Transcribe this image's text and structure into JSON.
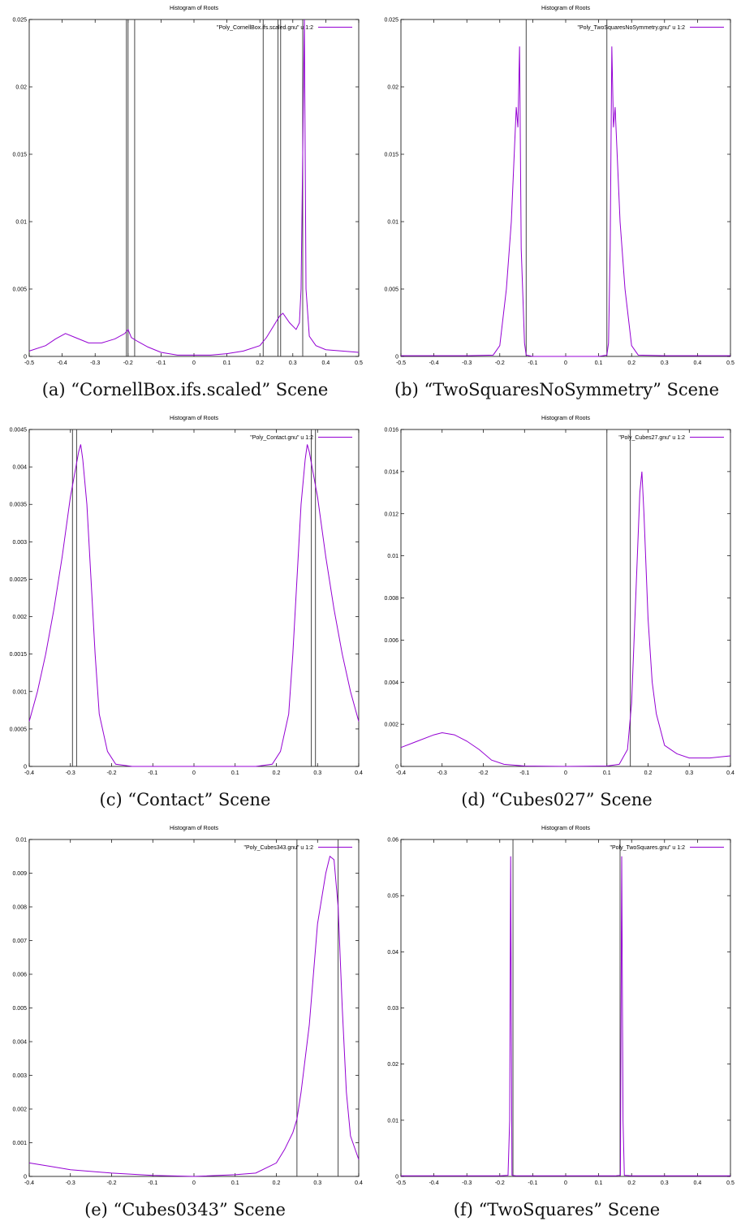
{
  "chart_data": [
    {
      "type": "line",
      "title": "Histogram of Roots",
      "caption": "(a) “CornellBox.ifs.scaled” Scene",
      "legend": "\"Poly_CornellBox.ifs.scaled.gnu\" u 1:2",
      "legend_position": "top-right",
      "xlim": [
        -0.5,
        0.5
      ],
      "ylim": [
        0,
        0.025
      ],
      "xticks": [
        "-0.5",
        "-0.4",
        "-0.3",
        "-0.2",
        "-0.1",
        "0",
        "0.1",
        "0.2",
        "0.3",
        "0.4",
        "0.5"
      ],
      "yticks": [
        "0",
        "0.005",
        "0.01",
        "0.015",
        "0.02",
        "0.025"
      ],
      "vlines": [
        -0.205,
        -0.2,
        -0.18,
        0.21,
        0.255,
        0.263,
        0.33
      ],
      "series": [
        {
          "color": "#9400d3",
          "points": [
            [
              -0.5,
              0.0004
            ],
            [
              -0.45,
              0.0008
            ],
            [
              -0.42,
              0.0013
            ],
            [
              -0.39,
              0.0017
            ],
            [
              -0.36,
              0.0014
            ],
            [
              -0.32,
              0.001
            ],
            [
              -0.28,
              0.001
            ],
            [
              -0.24,
              0.0013
            ],
            [
              -0.21,
              0.0017
            ],
            [
              -0.2,
              0.002
            ],
            [
              -0.19,
              0.0014
            ],
            [
              -0.17,
              0.0011
            ],
            [
              -0.14,
              0.0007
            ],
            [
              -0.1,
              0.0003
            ],
            [
              -0.05,
              0.0001
            ],
            [
              0,
              0.0001
            ],
            [
              0.05,
              0.0001
            ],
            [
              0.1,
              0.0002
            ],
            [
              0.15,
              0.0004
            ],
            [
              0.2,
              0.0008
            ],
            [
              0.22,
              0.0014
            ],
            [
              0.24,
              0.0022
            ],
            [
              0.26,
              0.003
            ],
            [
              0.27,
              0.0032
            ],
            [
              0.29,
              0.0025
            ],
            [
              0.31,
              0.002
            ],
            [
              0.32,
              0.0025
            ],
            [
              0.325,
              0.005
            ],
            [
              0.33,
              0.015
            ],
            [
              0.335,
              0.025
            ],
            [
              0.34,
              0.005
            ],
            [
              0.35,
              0.0015
            ],
            [
              0.37,
              0.0008
            ],
            [
              0.4,
              0.0005
            ],
            [
              0.45,
              0.0004
            ],
            [
              0.5,
              0.0003
            ]
          ]
        }
      ]
    },
    {
      "type": "line",
      "title": "Histogram of Roots",
      "caption": "(b) “TwoSquaresNoSymmetry” Scene",
      "legend": "\"Poly_TwoSquaresNoSymmetry.gnu\" u 1:2",
      "legend_position": "top-right",
      "xlim": [
        -0.5,
        0.5
      ],
      "ylim": [
        0,
        0.025
      ],
      "xticks": [
        "-0.5",
        "-0.4",
        "-0.3",
        "-0.2",
        "-0.1",
        "0",
        "0.1",
        "0.2",
        "0.3",
        "0.4",
        "0.5"
      ],
      "yticks": [
        "0",
        "0.005",
        "0.01",
        "0.015",
        "0.02",
        "0.025"
      ],
      "vlines": [
        -0.12,
        0.125
      ],
      "series": [
        {
          "color": "#9400d3",
          "points": [
            [
              -0.5,
              5e-05
            ],
            [
              -0.3,
              5e-05
            ],
            [
              -0.22,
              0.0001
            ],
            [
              -0.2,
              0.0008
            ],
            [
              -0.18,
              0.005
            ],
            [
              -0.165,
              0.01
            ],
            [
              -0.15,
              0.0185
            ],
            [
              -0.145,
              0.017
            ],
            [
              -0.14,
              0.023
            ],
            [
              -0.135,
              0.008
            ],
            [
              -0.125,
              0.001
            ],
            [
              -0.12,
              0.0001
            ],
            [
              -0.1,
              0
            ],
            [
              0.1,
              0
            ],
            [
              0.125,
              0.0001
            ],
            [
              0.13,
              0.001
            ],
            [
              0.135,
              0.008
            ],
            [
              0.14,
              0.023
            ],
            [
              0.145,
              0.017
            ],
            [
              0.15,
              0.0185
            ],
            [
              0.165,
              0.01
            ],
            [
              0.18,
              0.005
            ],
            [
              0.2,
              0.0008
            ],
            [
              0.22,
              0.0001
            ],
            [
              0.3,
              5e-05
            ],
            [
              0.5,
              5e-05
            ]
          ]
        }
      ]
    },
    {
      "type": "line",
      "title": "Histogram of Roots",
      "caption": "(c) “Contact” Scene",
      "legend": "\"Poly_Contact.gnu\" u 1:2",
      "legend_position": "top-right",
      "xlim": [
        -0.4,
        0.4
      ],
      "ylim": [
        0,
        0.0045
      ],
      "xticks": [
        "-0.4",
        "-0.3",
        "-0.2",
        "-0.1",
        "0",
        "0.1",
        "0.2",
        "0.3",
        "0.4"
      ],
      "yticks": [
        "0",
        "0.0005",
        "0.001",
        "0.0015",
        "0.002",
        "0.0025",
        "0.003",
        "0.0035",
        "0.004",
        "0.0045"
      ],
      "vlines": [
        -0.295,
        -0.285,
        0.285,
        0.295
      ],
      "series": [
        {
          "color": "#9400d3",
          "points": [
            [
              -0.4,
              0.0006
            ],
            [
              -0.38,
              0.001
            ],
            [
              -0.36,
              0.0015
            ],
            [
              -0.34,
              0.0021
            ],
            [
              -0.32,
              0.0028
            ],
            [
              -0.3,
              0.0036
            ],
            [
              -0.29,
              0.0039
            ],
            [
              -0.28,
              0.0042
            ],
            [
              -0.275,
              0.0043
            ],
            [
              -0.27,
              0.0041
            ],
            [
              -0.26,
              0.0035
            ],
            [
              -0.25,
              0.0025
            ],
            [
              -0.24,
              0.0015
            ],
            [
              -0.23,
              0.0007
            ],
            [
              -0.21,
              0.0002
            ],
            [
              -0.19,
              3e-05
            ],
            [
              -0.15,
              0
            ],
            [
              0.15,
              0
            ],
            [
              0.19,
              3e-05
            ],
            [
              0.21,
              0.0002
            ],
            [
              0.23,
              0.0007
            ],
            [
              0.24,
              0.0015
            ],
            [
              0.25,
              0.0025
            ],
            [
              0.26,
              0.0035
            ],
            [
              0.27,
              0.0041
            ],
            [
              0.275,
              0.0043
            ],
            [
              0.28,
              0.0042
            ],
            [
              0.29,
              0.0039
            ],
            [
              0.3,
              0.0036
            ],
            [
              0.32,
              0.0028
            ],
            [
              0.34,
              0.0021
            ],
            [
              0.36,
              0.0015
            ],
            [
              0.38,
              0.001
            ],
            [
              0.4,
              0.0006
            ]
          ]
        }
      ]
    },
    {
      "type": "line",
      "title": "Histogram of Roots",
      "caption": "(d) “Cubes027” Scene",
      "legend": "\"Poly_Cubes27.gnu\" u 1:2",
      "legend_position": "top-right",
      "xlim": [
        -0.4,
        0.4
      ],
      "ylim": [
        0,
        0.016
      ],
      "xticks": [
        "-0.4",
        "-0.3",
        "-0.2",
        "-0.1",
        "0",
        "0.1",
        "0.2",
        "0.3",
        "0.4"
      ],
      "yticks": [
        "0",
        "0.002",
        "0.004",
        "0.006",
        "0.008",
        "0.01",
        "0.012",
        "0.014",
        "0.016"
      ],
      "vlines": [
        0.1,
        0.157
      ],
      "series": [
        {
          "color": "#9400d3",
          "points": [
            [
              -0.4,
              0.0009
            ],
            [
              -0.36,
              0.0012
            ],
            [
              -0.32,
              0.0015
            ],
            [
              -0.3,
              0.0016
            ],
            [
              -0.27,
              0.0015
            ],
            [
              -0.24,
              0.0012
            ],
            [
              -0.21,
              0.0008
            ],
            [
              -0.18,
              0.0003
            ],
            [
              -0.15,
              0.0001
            ],
            [
              -0.1,
              2e-05
            ],
            [
              0,
              0
            ],
            [
              0.1,
              2e-05
            ],
            [
              0.13,
              0.0001
            ],
            [
              0.15,
              0.0008
            ],
            [
              0.16,
              0.003
            ],
            [
              0.17,
              0.008
            ],
            [
              0.18,
              0.013
            ],
            [
              0.185,
              0.014
            ],
            [
              0.19,
              0.012
            ],
            [
              0.2,
              0.007
            ],
            [
              0.21,
              0.004
            ],
            [
              0.22,
              0.0025
            ],
            [
              0.24,
              0.001
            ],
            [
              0.27,
              0.0006
            ],
            [
              0.3,
              0.0004
            ],
            [
              0.35,
              0.0004
            ],
            [
              0.4,
              0.0005
            ]
          ]
        }
      ]
    },
    {
      "type": "line",
      "title": "Histogram of Roots",
      "caption": "(e) “Cubes0343” Scene",
      "legend": "\"Poly_Cubes343.gnu\" u 1:2",
      "legend_position": "top-right",
      "xlim": [
        -0.4,
        0.4
      ],
      "ylim": [
        0,
        0.01
      ],
      "xticks": [
        "-0.4",
        "-0.3",
        "-0.2",
        "-0.1",
        "0",
        "0.1",
        "0.2",
        "0.3",
        "0.4"
      ],
      "yticks": [
        "0",
        "0.001",
        "0.002",
        "0.003",
        "0.004",
        "0.005",
        "0.006",
        "0.007",
        "0.008",
        "0.009",
        "0.01"
      ],
      "vlines": [
        0.25,
        0.35
      ],
      "series": [
        {
          "color": "#9400d3",
          "points": [
            [
              -0.4,
              0.0004
            ],
            [
              -0.35,
              0.0003
            ],
            [
              -0.3,
              0.0002
            ],
            [
              -0.2,
              0.0001
            ],
            [
              -0.1,
              3e-05
            ],
            [
              0,
              0
            ],
            [
              0.1,
              5e-05
            ],
            [
              0.15,
              0.0001
            ],
            [
              0.2,
              0.0004
            ],
            [
              0.22,
              0.0008
            ],
            [
              0.24,
              0.0013
            ],
            [
              0.25,
              0.0017
            ],
            [
              0.26,
              0.0025
            ],
            [
              0.28,
              0.0045
            ],
            [
              0.3,
              0.0075
            ],
            [
              0.32,
              0.009
            ],
            [
              0.33,
              0.0095
            ],
            [
              0.34,
              0.0094
            ],
            [
              0.35,
              0.008
            ],
            [
              0.36,
              0.005
            ],
            [
              0.37,
              0.0025
            ],
            [
              0.38,
              0.0012
            ],
            [
              0.4,
              0.0005
            ]
          ]
        }
      ]
    },
    {
      "type": "line",
      "title": "Histogram of Roots",
      "caption": "(f) “TwoSquares” Scene",
      "legend": "\"Poly_TwoSquares.gnu\" u 1:2",
      "legend_position": "top-right",
      "xlim": [
        -0.5,
        0.5
      ],
      "ylim": [
        0,
        0.06
      ],
      "xticks": [
        "-0.5",
        "-0.4",
        "-0.3",
        "-0.2",
        "-0.1",
        "0",
        "0.1",
        "0.2",
        "0.3",
        "0.4",
        "0.5"
      ],
      "yticks": [
        "0",
        "0.01",
        "0.02",
        "0.03",
        "0.04",
        "0.05",
        "0.06"
      ],
      "vlines": [
        -0.16,
        0.165
      ],
      "series": [
        {
          "color": "#9400d3",
          "points": [
            [
              -0.5,
              0.0001
            ],
            [
              -0.3,
              0.0001
            ],
            [
              -0.2,
              0.0001
            ],
            [
              -0.175,
              0.0002
            ],
            [
              -0.17,
              0.01
            ],
            [
              -0.167,
              0.057
            ],
            [
              -0.163,
              0.0002
            ],
            [
              -0.15,
              0.0001
            ],
            [
              0.15,
              0.0001
            ],
            [
              0.166,
              0.0002
            ],
            [
              0.17,
              0.057
            ],
            [
              0.174,
              0.01
            ],
            [
              0.178,
              0.0002
            ],
            [
              0.2,
              0.0001
            ],
            [
              0.3,
              0.0001
            ],
            [
              0.5,
              0.0001
            ]
          ]
        }
      ]
    }
  ]
}
